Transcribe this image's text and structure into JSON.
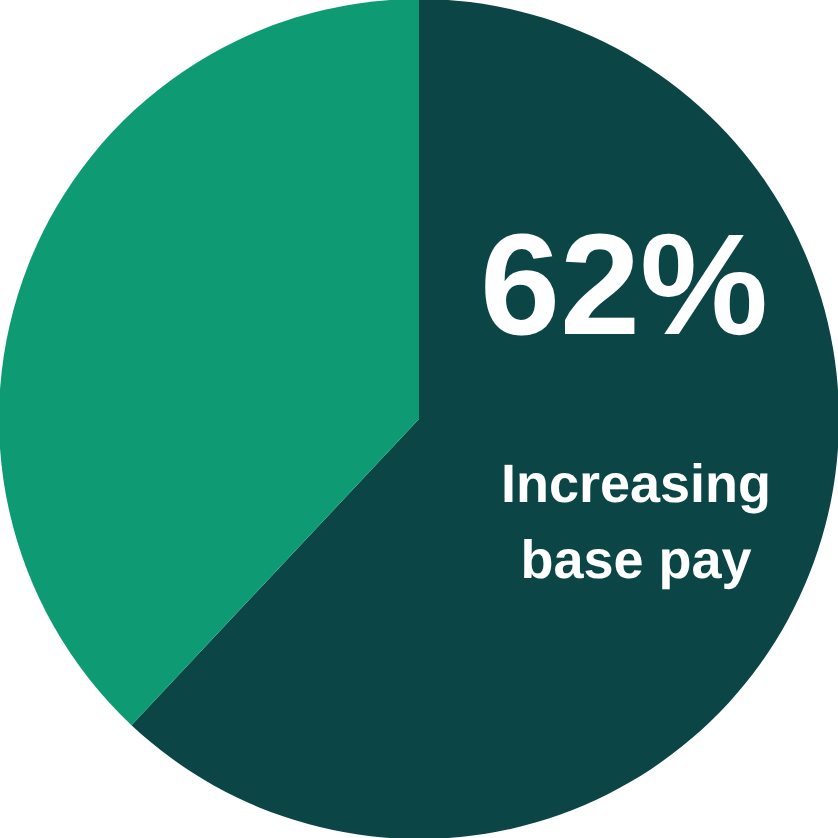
{
  "chart_data": {
    "type": "pie",
    "categories": [
      "Increasing base pay",
      null
    ],
    "values": [
      62,
      38
    ],
    "colors": [
      "#0b4545",
      "#0e9b74"
    ],
    "value_labels": [
      "62%",
      null
    ]
  }
}
